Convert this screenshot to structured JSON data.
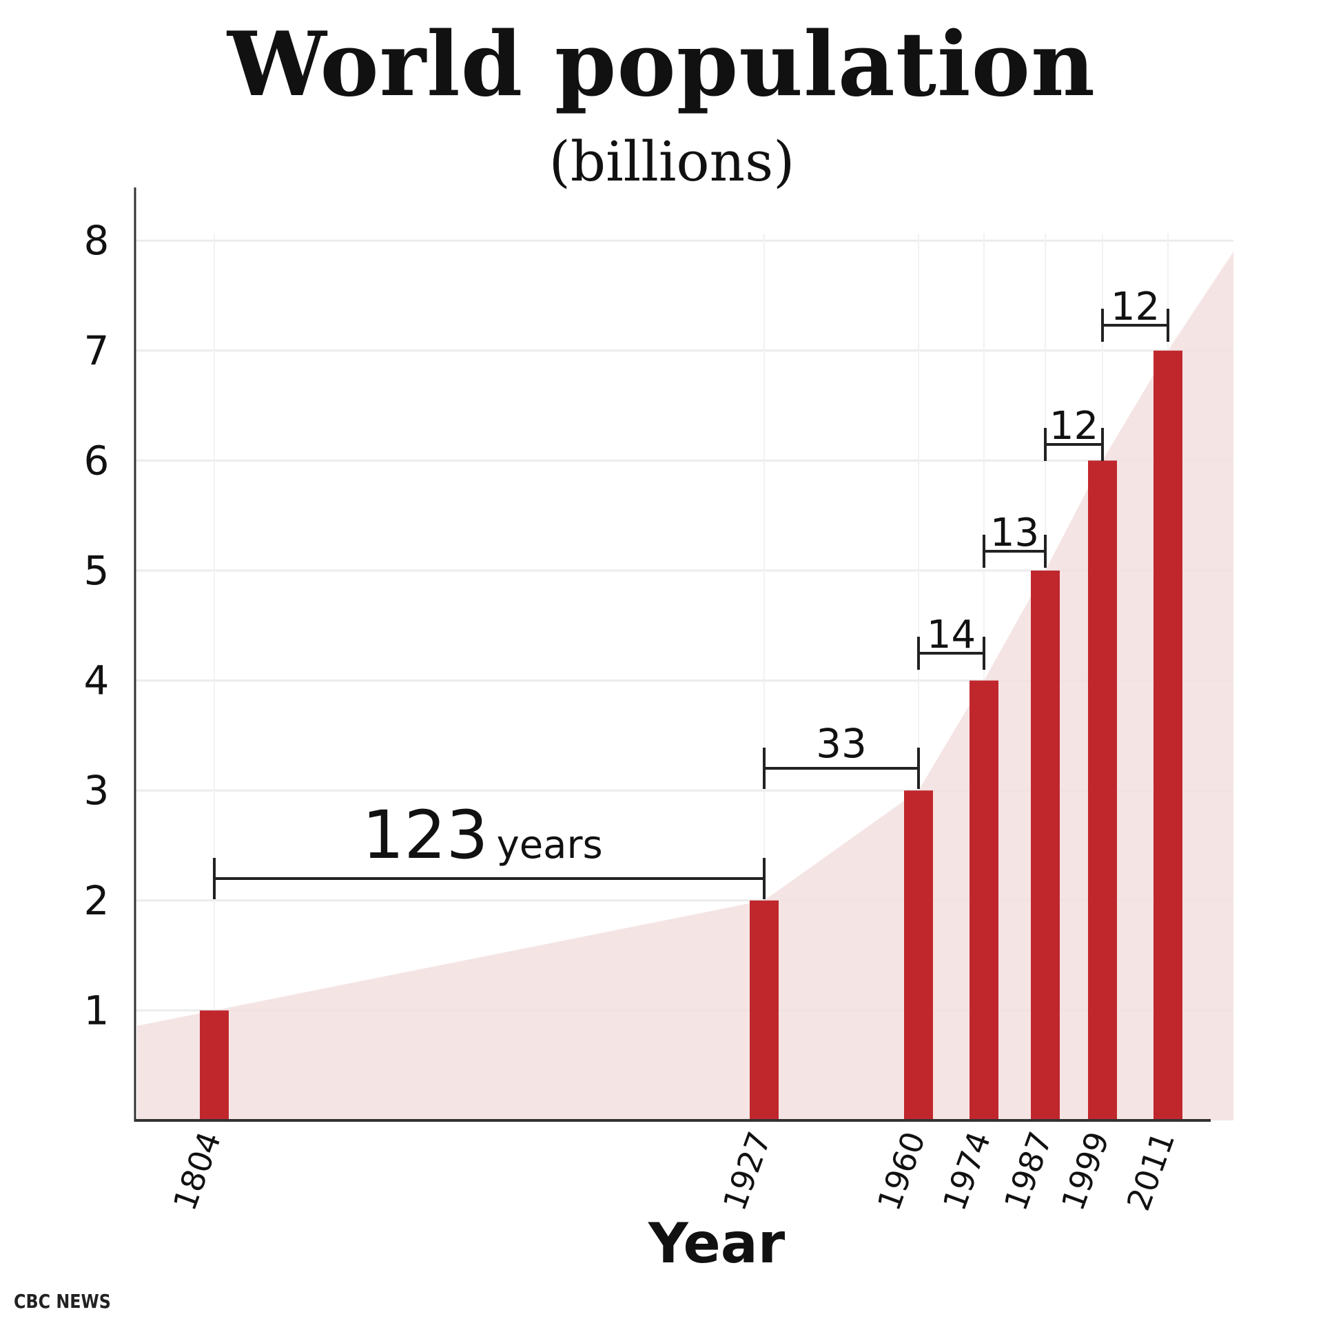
{
  "chart_data": {
    "type": "bar",
    "title": "World population",
    "subtitle": "(billions)",
    "xlabel": "Year",
    "ylabel": "",
    "categories": [
      "1804",
      "1927",
      "1960",
      "1974",
      "1987",
      "1999",
      "2011"
    ],
    "values": [
      1,
      2,
      3,
      4,
      5,
      6,
      7
    ],
    "ylim": [
      0,
      8
    ],
    "yticks": [
      1,
      2,
      3,
      4,
      5,
      6,
      7,
      8
    ],
    "grid": true,
    "background_area": {
      "description": "light pink growth curve area behind bars",
      "points": [
        [
          1774,
          0.86
        ],
        [
          1804,
          1
        ],
        [
          1927,
          2
        ],
        [
          1960,
          3
        ],
        [
          1974,
          4
        ],
        [
          1987,
          5
        ],
        [
          1999,
          6
        ],
        [
          2011,
          7
        ],
        [
          2024,
          7.9
        ]
      ]
    },
    "annotations": [
      {
        "from": "1804",
        "to": "1927",
        "label": "123",
        "suffix": "years"
      },
      {
        "from": "1927",
        "to": "1960",
        "label": "33"
      },
      {
        "from": "1960",
        "to": "1974",
        "label": "14"
      },
      {
        "from": "1974",
        "to": "1987",
        "label": "13"
      },
      {
        "from": "1987",
        "to": "1999",
        "label": "12"
      },
      {
        "from": "1999",
        "to": "2011",
        "label": "12"
      }
    ],
    "colors": {
      "bar": "#c0272d",
      "area": "#f3dfdf",
      "grid": "#ececec",
      "axis": "#333333"
    }
  },
  "source": "CBC NEWS"
}
